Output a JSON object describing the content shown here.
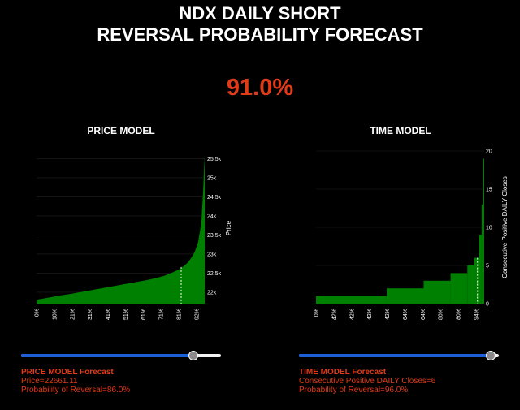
{
  "title_line1": "NDX DAILY SHORT",
  "title_line2": "REVERSAL PROBABILITY FORECAST",
  "probability": "91.0%",
  "colors": {
    "accent": "#e03a17",
    "bar": "#008000",
    "slider": "#1c5fd6"
  },
  "price_model": {
    "heading": "PRICE MODEL",
    "forecast_heading": "PRICE MODEL Forecast",
    "price_line": "Price=22661.11",
    "prob_line": "Probability of Reversal=86.0%",
    "slider_value": 0.86
  },
  "time_model": {
    "heading": "TIME MODEL",
    "forecast_heading": "TIME MODEL Forecast",
    "closes_line": "Consecutive Positive DAILY Closes=6",
    "prob_line": "Probability of Reversal=96.0%",
    "slider_value": 0.96
  },
  "chart_data": [
    {
      "type": "area",
      "title": "PRICE MODEL",
      "xlabel": "",
      "ylabel": "Price",
      "x_tick_labels": [
        "0%",
        "10%",
        "21%",
        "31%",
        "41%",
        "51%",
        "61%",
        "71%",
        "81%",
        "92%"
      ],
      "y_ticks": [
        22000,
        22500,
        23000,
        23500,
        24000,
        24500,
        25000,
        25500
      ],
      "y_tick_labels": [
        "22k",
        "22.5k",
        "23k",
        "23.5k",
        "24k",
        "24.5k",
        "25k",
        "25.5k"
      ],
      "ylim": [
        21700,
        25700
      ],
      "x": [
        0,
        5,
        10,
        15,
        21,
        26,
        31,
        36,
        41,
        46,
        51,
        56,
        61,
        66,
        71,
        76,
        81,
        84,
        86,
        88,
        90,
        92,
        94,
        96,
        98,
        99,
        100
      ],
      "y": [
        21800,
        21840,
        21880,
        21920,
        21960,
        22000,
        22040,
        22080,
        22120,
        22160,
        22200,
        22240,
        22280,
        22320,
        22370,
        22430,
        22520,
        22580,
        22630,
        22700,
        22780,
        22900,
        23050,
        23300,
        23800,
        24600,
        25600
      ],
      "marker": {
        "x": 86,
        "value": 22661.11
      },
      "grid": true,
      "y_axis_side": "right"
    },
    {
      "type": "bar",
      "title": "TIME MODEL",
      "xlabel": "",
      "ylabel": "Consecutive Positive DAILY Closes",
      "x_tick_labels": [
        "0%",
        "42%",
        "42%",
        "42%",
        "42%",
        "64%",
        "64%",
        "80%",
        "80%",
        "94%"
      ],
      "y_ticks": [
        0,
        5,
        10,
        15,
        20
      ],
      "ylim": [
        0,
        20
      ],
      "steps": [
        {
          "from": 0,
          "to": 42,
          "value": 1
        },
        {
          "from": 42,
          "to": 64,
          "value": 2
        },
        {
          "from": 64,
          "to": 80,
          "value": 3
        },
        {
          "from": 80,
          "to": 90,
          "value": 4
        },
        {
          "from": 90,
          "to": 94,
          "value": 5
        },
        {
          "from": 94,
          "to": 97,
          "value": 6
        },
        {
          "from": 97,
          "to": 98.5,
          "value": 9
        },
        {
          "from": 98.5,
          "to": 99.3,
          "value": 13
        },
        {
          "from": 99.3,
          "to": 100,
          "value": 19
        }
      ],
      "marker": {
        "x": 96,
        "value": 6
      },
      "grid": true,
      "y_axis_side": "right"
    }
  ]
}
